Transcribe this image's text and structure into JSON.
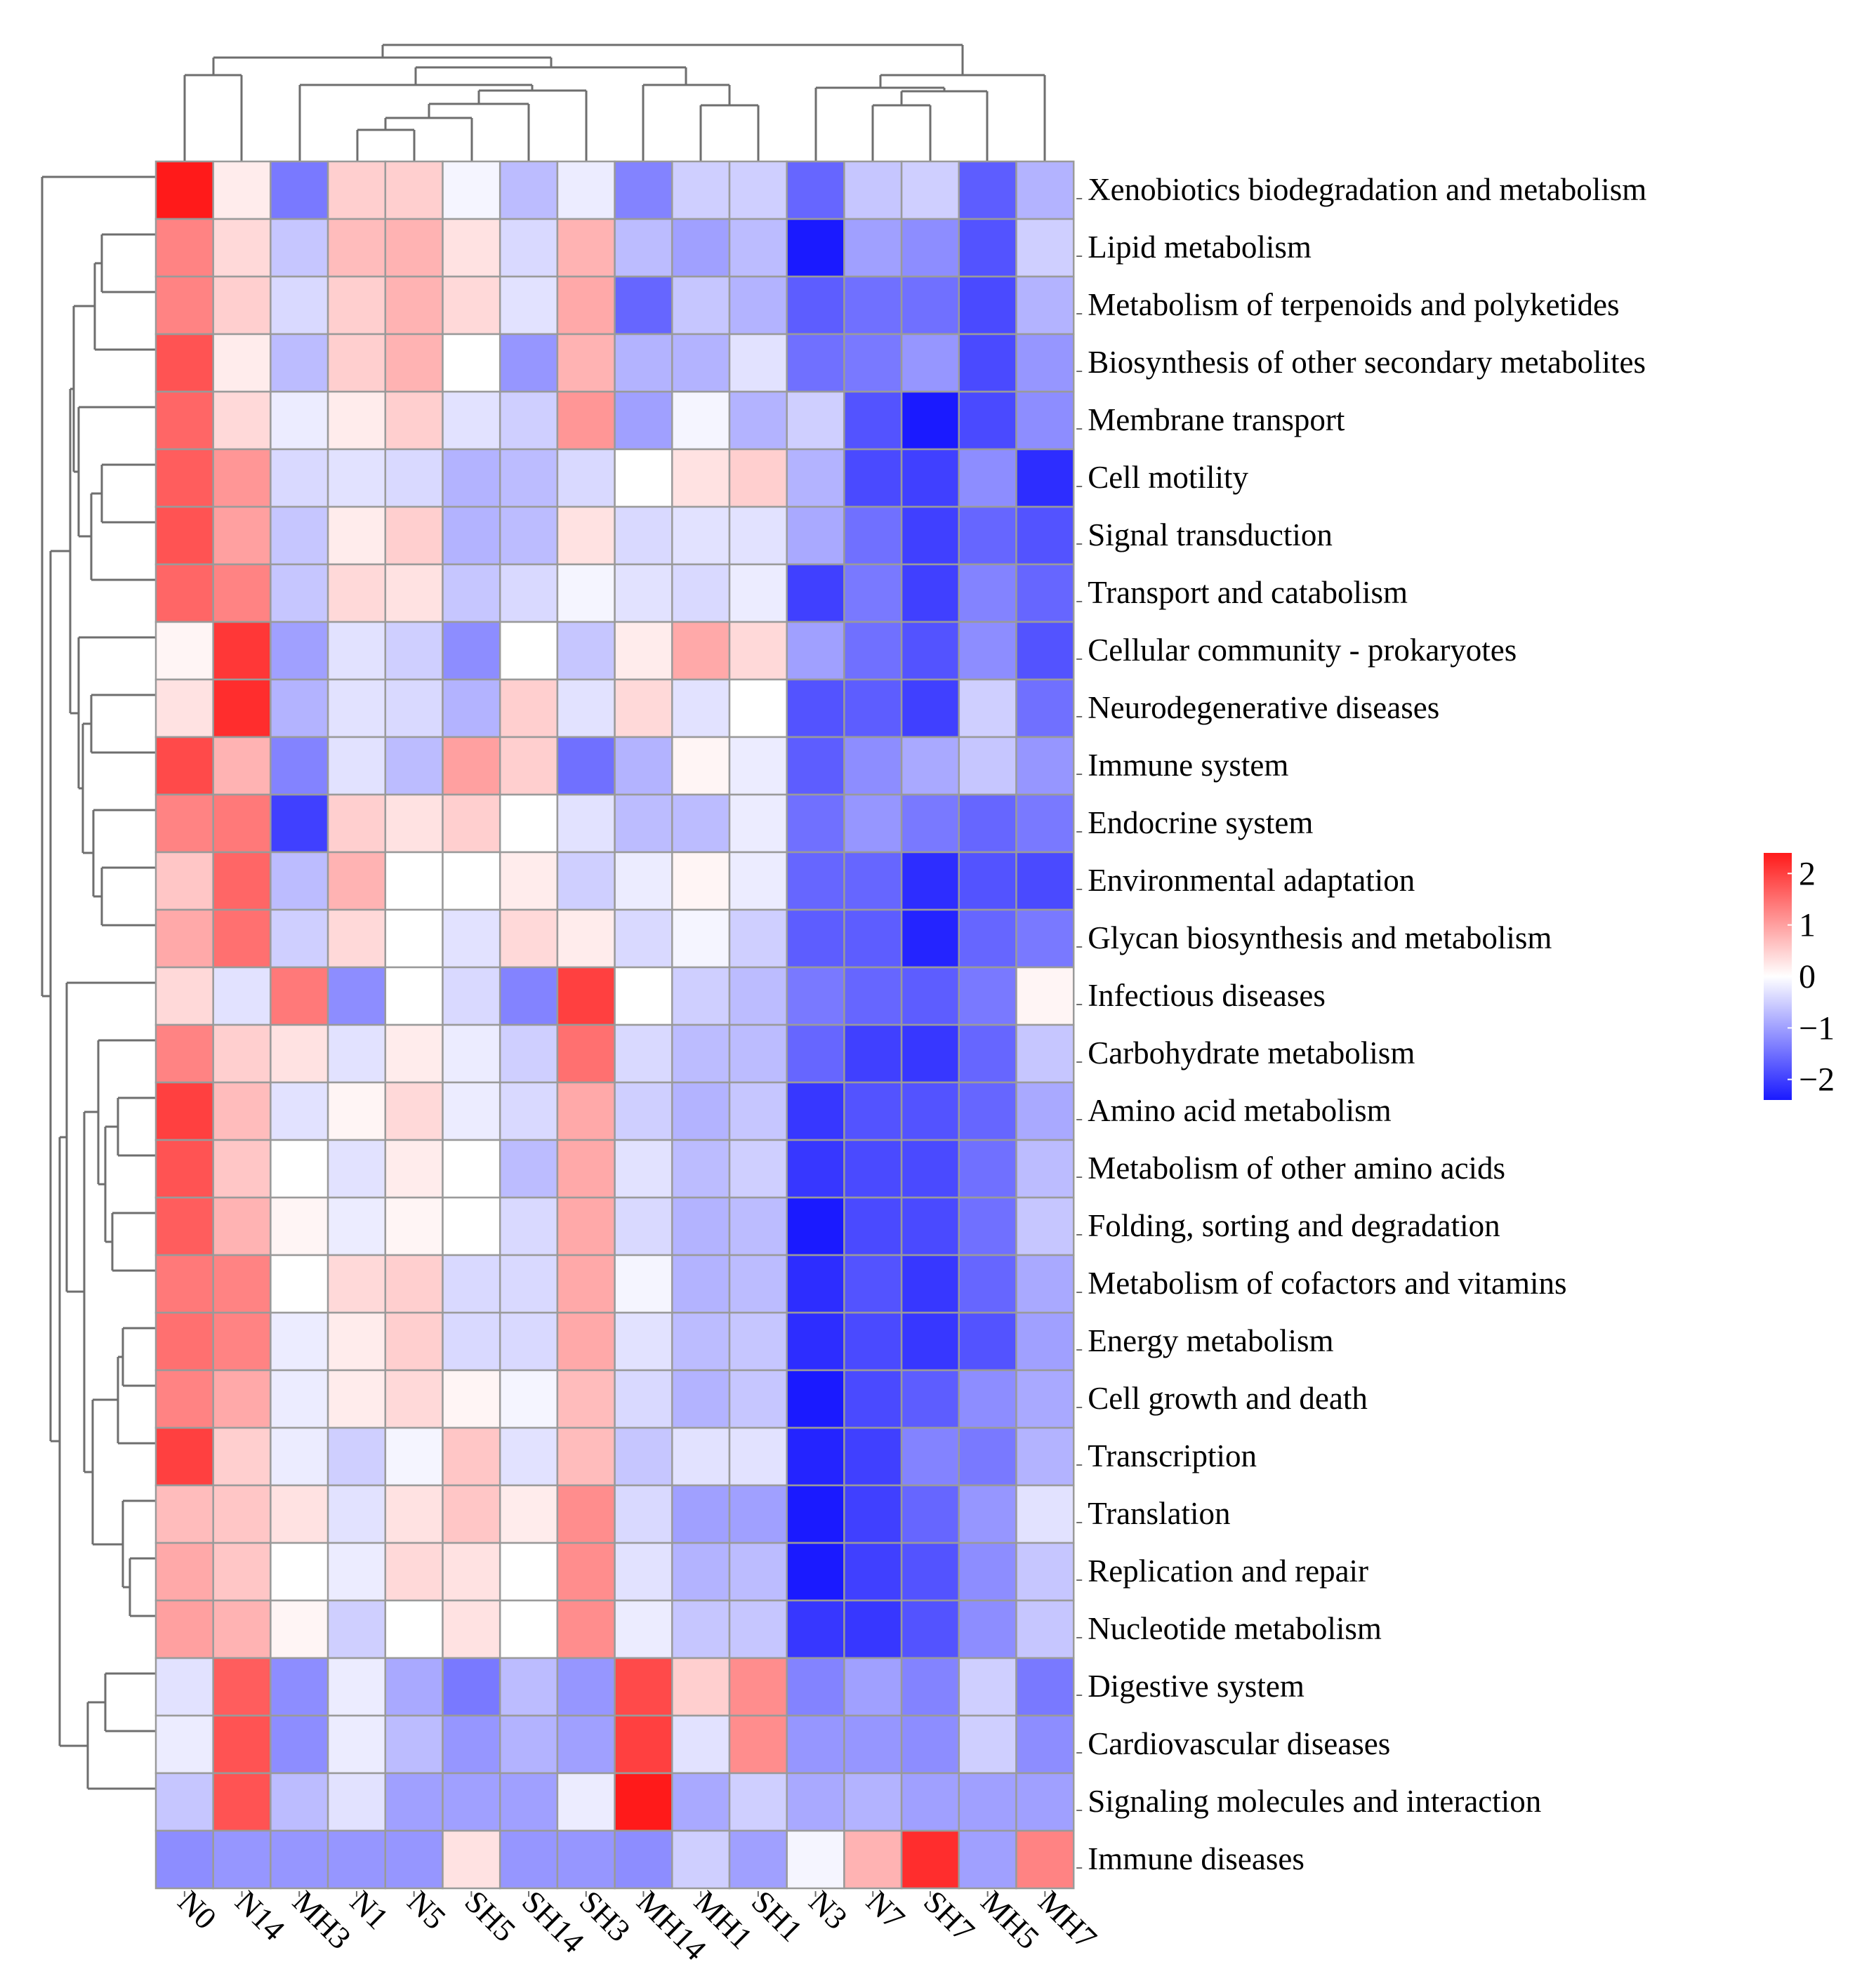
{
  "chart_data": {
    "type": "heatmap",
    "title": "",
    "columns": [
      "N0",
      "N14",
      "MH3",
      "N1",
      "N5",
      "SH5",
      "SH14",
      "SH3",
      "MH14",
      "MH1",
      "SH1",
      "N3",
      "N7",
      "SH7",
      "MH5",
      "MH7"
    ],
    "rows": [
      "Xenobiotics biodegradation and metabolism",
      "Lipid metabolism",
      "Metabolism of terpenoids and polyketides",
      "Biosynthesis of other secondary metabolites",
      "Membrane transport",
      "Cell motility",
      "Signal transduction",
      "Transport and catabolism",
      "Cellular community - prokaryotes",
      "Neurodegenerative diseases",
      "Immune system",
      "Endocrine system",
      "Environmental adaptation",
      "Glycan biosynthesis and metabolism",
      "Infectious diseases",
      "Carbohydrate metabolism",
      "Amino acid metabolism",
      "Metabolism of other amino acids",
      "Folding, sorting and degradation",
      "Metabolism of cofactors and vitamins",
      "Energy metabolism",
      "Cell growth and death",
      "Transcription",
      "Translation",
      "Replication and repair",
      "Nucleotide metabolism",
      "Digestive system",
      "Cardiovascular diseases",
      "Signaling molecules and interaction",
      "Immune diseases"
    ],
    "values": [
      [
        2.6,
        0.2,
        -1.4,
        0.5,
        0.5,
        -0.1,
        -0.7,
        -0.2,
        -1.3,
        -0.5,
        -0.5,
        -1.6,
        -0.6,
        -0.5,
        -1.7,
        -0.8
      ],
      [
        1.3,
        0.4,
        -0.6,
        0.7,
        0.8,
        0.3,
        -0.4,
        0.8,
        -0.7,
        -1.0,
        -0.7,
        -2.6,
        -1.0,
        -1.2,
        -1.8,
        -0.5
      ],
      [
        1.3,
        0.5,
        -0.4,
        0.5,
        0.8,
        0.4,
        -0.3,
        0.9,
        -1.6,
        -0.6,
        -0.8,
        -1.7,
        -1.5,
        -1.5,
        -1.9,
        -0.8
      ],
      [
        1.8,
        0.2,
        -0.7,
        0.5,
        0.8,
        0.0,
        -1.1,
        0.8,
        -0.8,
        -0.8,
        -0.3,
        -1.5,
        -1.4,
        -1.1,
        -1.9,
        -1.1
      ],
      [
        1.6,
        0.4,
        -0.2,
        0.2,
        0.5,
        -0.3,
        -0.5,
        1.1,
        -1.0,
        -0.1,
        -0.8,
        -0.5,
        -1.8,
        -2.4,
        -1.9,
        -1.2
      ],
      [
        1.7,
        1.1,
        -0.4,
        -0.3,
        -0.4,
        -0.8,
        -0.7,
        -0.4,
        0.0,
        0.3,
        0.5,
        -0.8,
        -1.9,
        -2.0,
        -1.2,
        -2.2
      ],
      [
        1.8,
        1.0,
        -0.6,
        0.2,
        0.5,
        -0.8,
        -0.7,
        0.3,
        -0.4,
        -0.3,
        -0.3,
        -0.9,
        -1.5,
        -2.0,
        -1.6,
        -1.8
      ],
      [
        1.6,
        1.3,
        -0.6,
        0.4,
        0.3,
        -0.6,
        -0.4,
        -0.1,
        -0.3,
        -0.4,
        -0.2,
        -2.0,
        -1.4,
        -2.0,
        -1.3,
        -1.6
      ],
      [
        0.1,
        2.1,
        -1.0,
        -0.3,
        -0.5,
        -1.2,
        0.0,
        -0.6,
        0.2,
        0.9,
        0.4,
        -1.0,
        -1.5,
        -1.8,
        -1.2,
        -1.8
      ],
      [
        0.3,
        2.2,
        -0.8,
        -0.3,
        -0.4,
        -0.8,
        0.5,
        -0.3,
        0.4,
        -0.3,
        0.0,
        -1.8,
        -1.7,
        -2.0,
        -0.5,
        -1.5
      ],
      [
        1.9,
        0.8,
        -1.3,
        -0.3,
        -0.7,
        1.0,
        0.5,
        -1.5,
        -0.8,
        0.1,
        -0.2,
        -1.7,
        -1.2,
        -0.9,
        -0.6,
        -1.1
      ],
      [
        1.3,
        1.4,
        -2.0,
        0.5,
        0.3,
        0.5,
        0.0,
        -0.3,
        -0.7,
        -0.7,
        -0.2,
        -1.5,
        -1.1,
        -1.4,
        -1.6,
        -1.4
      ],
      [
        0.6,
        1.6,
        -0.7,
        0.8,
        0.0,
        0.0,
        0.2,
        -0.5,
        -0.2,
        0.1,
        -0.2,
        -1.6,
        -1.6,
        -2.2,
        -1.8,
        -1.9
      ],
      [
        0.9,
        1.5,
        -0.5,
        0.4,
        0.0,
        -0.3,
        0.4,
        0.2,
        -0.4,
        -0.1,
        -0.5,
        -1.7,
        -1.7,
        -2.3,
        -1.6,
        -1.4
      ],
      [
        0.4,
        -0.3,
        1.4,
        -1.2,
        0.0,
        -0.4,
        -1.3,
        2.0,
        0.0,
        -0.5,
        -0.7,
        -1.4,
        -1.6,
        -1.7,
        -1.4,
        0.1
      ],
      [
        1.3,
        0.5,
        0.3,
        -0.3,
        0.2,
        -0.2,
        -0.5,
        1.5,
        -0.4,
        -0.7,
        -0.7,
        -1.6,
        -2.0,
        -2.1,
        -1.6,
        -0.6
      ],
      [
        2.0,
        0.7,
        -0.3,
        0.1,
        0.4,
        -0.2,
        -0.4,
        0.9,
        -0.5,
        -0.8,
        -0.6,
        -2.1,
        -1.8,
        -1.8,
        -1.6,
        -0.9
      ],
      [
        1.8,
        0.6,
        0.0,
        -0.3,
        0.2,
        0.0,
        -0.7,
        0.9,
        -0.3,
        -0.7,
        -0.5,
        -2.1,
        -1.9,
        -1.9,
        -1.5,
        -0.7
      ],
      [
        1.7,
        0.8,
        0.1,
        -0.2,
        0.1,
        0.0,
        -0.4,
        0.9,
        -0.4,
        -0.8,
        -0.7,
        -2.4,
        -1.9,
        -1.9,
        -1.5,
        -0.6
      ],
      [
        1.4,
        1.3,
        0.0,
        0.4,
        0.5,
        -0.4,
        -0.4,
        0.9,
        -0.1,
        -0.8,
        -0.7,
        -2.2,
        -1.8,
        -2.1,
        -1.6,
        -0.9
      ],
      [
        1.5,
        1.3,
        -0.2,
        0.2,
        0.5,
        -0.4,
        -0.4,
        0.9,
        -0.3,
        -0.7,
        -0.6,
        -2.2,
        -1.9,
        -2.1,
        -1.8,
        -1.0
      ],
      [
        1.3,
        0.9,
        -0.2,
        0.2,
        0.4,
        0.1,
        -0.1,
        0.7,
        -0.4,
        -0.8,
        -0.6,
        -2.6,
        -1.9,
        -1.7,
        -1.2,
        -0.9
      ],
      [
        2.0,
        0.5,
        -0.2,
        -0.5,
        -0.1,
        0.6,
        -0.3,
        0.7,
        -0.6,
        -0.3,
        -0.3,
        -2.3,
        -2.0,
        -1.3,
        -1.4,
        -0.8
      ],
      [
        0.7,
        0.6,
        0.3,
        -0.3,
        0.3,
        0.6,
        0.2,
        1.2,
        -0.4,
        -1.0,
        -1.0,
        -2.6,
        -2.0,
        -1.6,
        -1.1,
        -0.3
      ],
      [
        0.9,
        0.6,
        0.0,
        -0.2,
        0.4,
        0.3,
        0.0,
        1.2,
        -0.3,
        -0.8,
        -0.7,
        -2.4,
        -2.0,
        -1.8,
        -1.2,
        -0.6
      ],
      [
        1.0,
        0.8,
        0.1,
        -0.5,
        0.0,
        0.3,
        0.0,
        1.2,
        -0.2,
        -0.6,
        -0.6,
        -2.1,
        -2.1,
        -1.8,
        -1.2,
        -0.6
      ],
      [
        -0.3,
        1.7,
        -1.2,
        -0.2,
        -0.9,
        -1.4,
        -0.7,
        -1.1,
        1.9,
        0.5,
        1.2,
        -1.3,
        -1.0,
        -1.3,
        -0.5,
        -1.4
      ],
      [
        -0.2,
        1.8,
        -1.2,
        -0.2,
        -0.7,
        -1.1,
        -0.8,
        -1.0,
        2.0,
        -0.3,
        1.2,
        -1.1,
        -1.1,
        -1.2,
        -0.5,
        -1.2
      ],
      [
        -0.6,
        1.8,
        -0.7,
        -0.3,
        -1.0,
        -1.0,
        -1.0,
        -0.2,
        2.8,
        -0.9,
        -0.5,
        -0.9,
        -0.8,
        -1.0,
        -1.0,
        -1.0
      ],
      [
        -1.2,
        -1.1,
        -1.1,
        -1.1,
        -1.1,
        0.3,
        -1.1,
        -1.1,
        -1.2,
        -0.5,
        -1.0,
        -0.1,
        0.8,
        2.2,
        -1.0,
        1.3
      ]
    ],
    "xlabel": "",
    "ylabel": "",
    "color_scale": {
      "min": -2.4,
      "max": 2.4,
      "low_color": "#1a1aff",
      "mid_color": "#ffffff",
      "high_color": "#ff1a1a",
      "ticks": [
        2,
        1,
        0,
        -1,
        -2
      ],
      "tick_labels": [
        "2",
        "1",
        "0",
        "−1",
        "−2"
      ]
    },
    "legend_position": "right",
    "dendrograms": [
      "top",
      "left"
    ]
  }
}
